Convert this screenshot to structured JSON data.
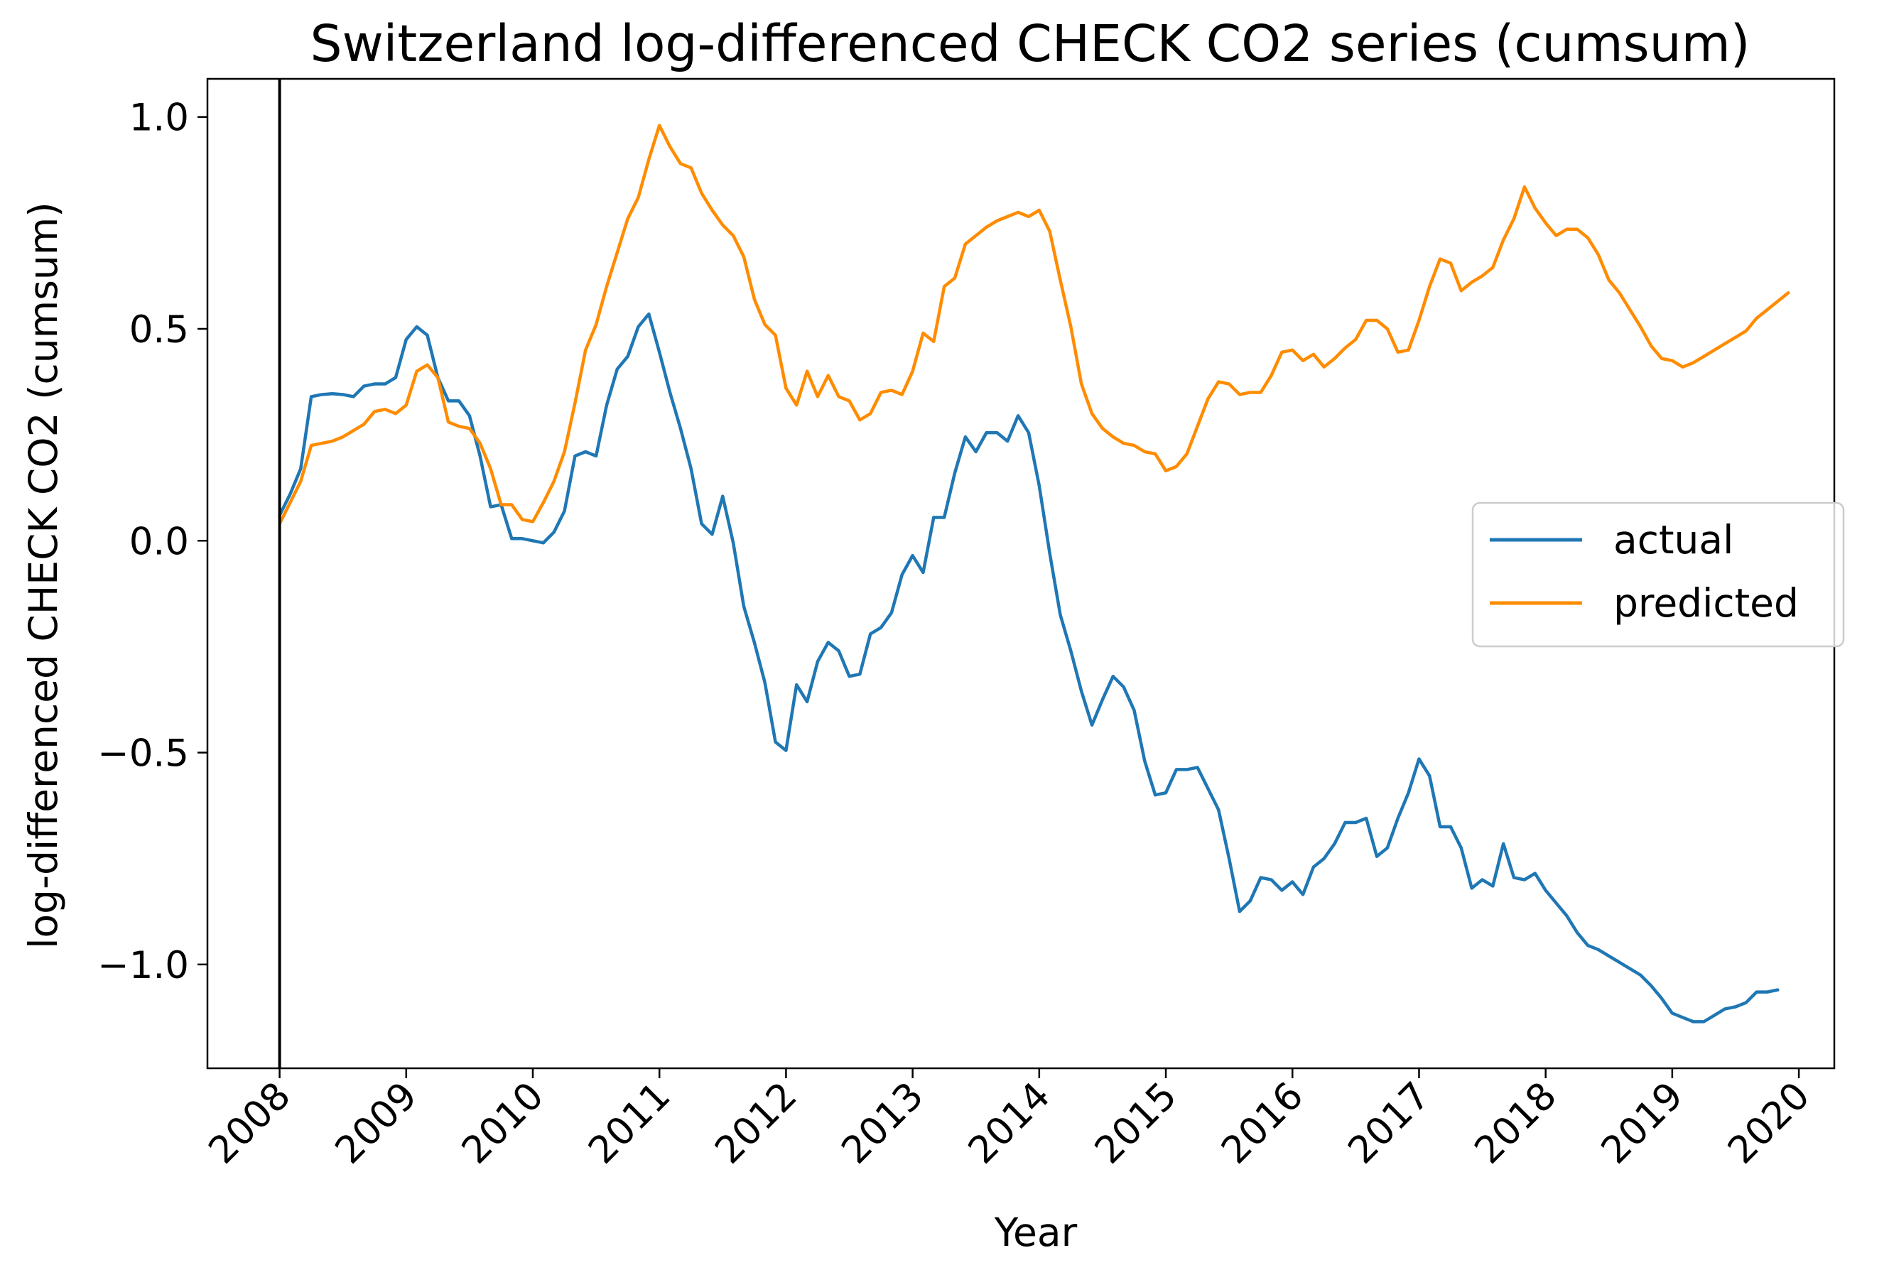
{
  "chart_data": {
    "type": "line",
    "title": "Switzerland log-differenced CHECK CO2 series (cumsum)",
    "xlabel": "Year",
    "ylabel": "log-differenced CHECK CO2 (cumsum)",
    "xlim": [
      2007.43,
      2020.28
    ],
    "ylim": [
      -1.245,
      1.09
    ],
    "x_ticks": [
      "2008",
      "2009",
      "2010",
      "2011",
      "2012",
      "2013",
      "2014",
      "2015",
      "2016",
      "2017",
      "2018",
      "2019",
      "2020"
    ],
    "y_ticks": [
      {
        "value": 1.0,
        "label": "1.0"
      },
      {
        "value": 0.5,
        "label": "0.5"
      },
      {
        "value": 0.0,
        "label": "0.0"
      },
      {
        "value": -0.5,
        "label": "−0.5"
      },
      {
        "value": -1.0,
        "label": "−1.0"
      }
    ],
    "vline_x": 2008.0,
    "grid": false,
    "legend_position": "center-right",
    "x_start": 2008.0,
    "x_step": 0.08333,
    "series": [
      {
        "name": "actual",
        "color": "#1f77b4",
        "values": [
          0.06,
          0.11,
          0.17,
          0.34,
          0.345,
          0.347,
          0.345,
          0.34,
          0.365,
          0.37,
          0.37,
          0.385,
          0.475,
          0.505,
          0.485,
          0.385,
          0.33,
          0.33,
          0.295,
          0.2,
          0.08,
          0.085,
          0.005,
          0.005,
          0.0,
          -0.005,
          0.02,
          0.07,
          0.2,
          0.21,
          0.2,
          0.32,
          0.405,
          0.435,
          0.505,
          0.535,
          0.445,
          0.35,
          0.265,
          0.17,
          0.04,
          0.015,
          0.105,
          -0.005,
          -0.155,
          -0.24,
          -0.335,
          -0.475,
          -0.495,
          -0.34,
          -0.38,
          -0.285,
          -0.24,
          -0.26,
          -0.32,
          -0.315,
          -0.22,
          -0.205,
          -0.17,
          -0.08,
          -0.035,
          -0.075,
          0.055,
          0.055,
          0.16,
          0.245,
          0.21,
          0.255,
          0.255,
          0.235,
          0.295,
          0.255,
          0.13,
          -0.03,
          -0.175,
          -0.26,
          -0.355,
          -0.435,
          -0.375,
          -0.32,
          -0.345,
          -0.4,
          -0.52,
          -0.6,
          -0.595,
          -0.54,
          -0.54,
          -0.535,
          -0.585,
          -0.635,
          -0.75,
          -0.875,
          -0.85,
          -0.795,
          -0.8,
          -0.825,
          -0.805,
          -0.835,
          -0.77,
          -0.75,
          -0.715,
          -0.665,
          -0.665,
          -0.655,
          -0.745,
          -0.725,
          -0.655,
          -0.595,
          -0.515,
          -0.555,
          -0.675,
          -0.675,
          -0.725,
          -0.82,
          -0.8,
          -0.815,
          -0.715,
          -0.795,
          -0.8,
          -0.785,
          -0.825,
          -0.855,
          -0.885,
          -0.925,
          -0.955,
          -0.965,
          -0.98,
          -0.995,
          -1.01,
          -1.025,
          -1.05,
          -1.08,
          -1.115,
          -1.125,
          -1.135,
          -1.135,
          -1.12,
          -1.105,
          -1.1,
          -1.09,
          -1.065,
          -1.065,
          -1.06
        ]
      },
      {
        "name": "predicted",
        "color": "#ff8c00",
        "values": [
          0.04,
          0.09,
          0.14,
          0.225,
          0.23,
          0.235,
          0.245,
          0.26,
          0.275,
          0.305,
          0.31,
          0.3,
          0.32,
          0.4,
          0.415,
          0.385,
          0.28,
          0.27,
          0.265,
          0.23,
          0.17,
          0.085,
          0.085,
          0.05,
          0.045,
          0.09,
          0.14,
          0.21,
          0.325,
          0.45,
          0.51,
          0.6,
          0.68,
          0.76,
          0.81,
          0.9,
          0.98,
          0.93,
          0.89,
          0.88,
          0.82,
          0.78,
          0.745,
          0.72,
          0.67,
          0.57,
          0.51,
          0.485,
          0.36,
          0.32,
          0.4,
          0.34,
          0.39,
          0.34,
          0.33,
          0.285,
          0.3,
          0.35,
          0.355,
          0.345,
          0.4,
          0.49,
          0.47,
          0.6,
          0.62,
          0.7,
          0.72,
          0.74,
          0.755,
          0.765,
          0.775,
          0.765,
          0.78,
          0.73,
          0.615,
          0.505,
          0.37,
          0.3,
          0.265,
          0.245,
          0.23,
          0.225,
          0.21,
          0.205,
          0.165,
          0.175,
          0.205,
          0.27,
          0.335,
          0.375,
          0.37,
          0.345,
          0.35,
          0.35,
          0.39,
          0.445,
          0.45,
          0.425,
          0.44,
          0.41,
          0.43,
          0.455,
          0.475,
          0.52,
          0.52,
          0.5,
          0.445,
          0.45,
          0.52,
          0.6,
          0.665,
          0.655,
          0.59,
          0.61,
          0.625,
          0.645,
          0.71,
          0.76,
          0.835,
          0.785,
          0.75,
          0.72,
          0.735,
          0.735,
          0.715,
          0.675,
          0.615,
          0.585,
          0.545,
          0.505,
          0.46,
          0.43,
          0.425,
          0.41,
          0.42,
          0.435,
          0.45,
          0.465,
          0.48,
          0.495,
          0.525,
          0.545,
          0.565,
          0.585
        ]
      }
    ]
  }
}
